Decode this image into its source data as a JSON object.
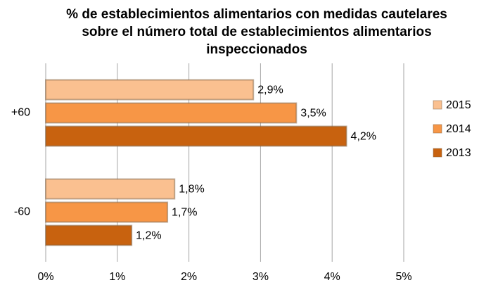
{
  "chart_data": {
    "type": "bar",
    "orientation": "horizontal",
    "title": "% de establecimientos alimentarios con medidas cautelares sobre el número total de establecimientos alimentarios inspeccionados",
    "categories": [
      "+60",
      "-60"
    ],
    "series": [
      {
        "name": "2015",
        "color": "#fac090",
        "values": [
          2.9,
          1.8
        ],
        "value_labels": [
          "2,9%",
          "1,8%"
        ]
      },
      {
        "name": "2014",
        "color": "#f79646",
        "values": [
          3.5,
          1.7
        ],
        "value_labels": [
          "3,5%",
          "1,7%"
        ]
      },
      {
        "name": "2013",
        "color": "#c8620f",
        "values": [
          4.2,
          1.2
        ],
        "value_labels": [
          "4,2%",
          "1,2%"
        ]
      }
    ],
    "xlim": [
      0,
      5
    ],
    "xticks": [
      {
        "value": 0,
        "label": "0%"
      },
      {
        "value": 1,
        "label": "1%"
      },
      {
        "value": 2,
        "label": "2%"
      },
      {
        "value": 3,
        "label": "3%"
      },
      {
        "value": 4,
        "label": "4%"
      },
      {
        "value": 5,
        "label": "5%"
      }
    ],
    "grid": true,
    "legend": "right"
  }
}
